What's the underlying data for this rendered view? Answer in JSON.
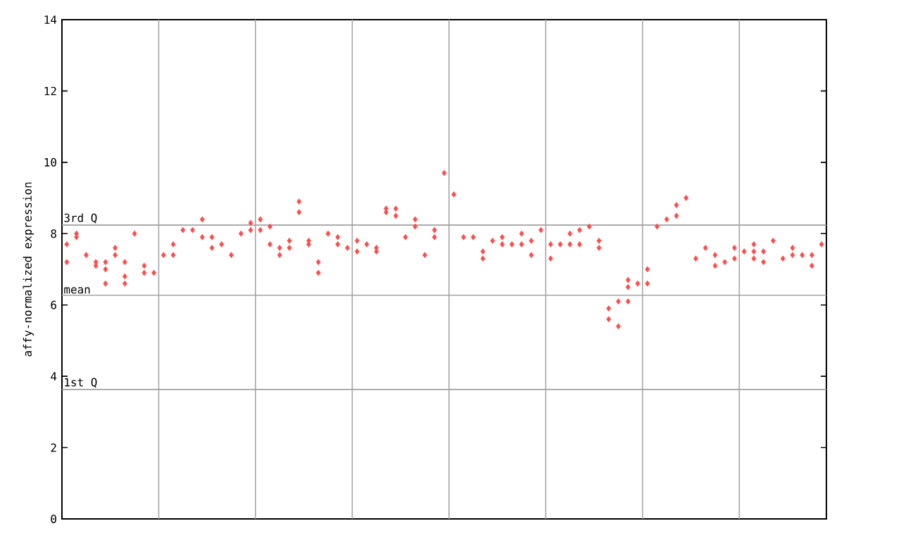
{
  "chart_data": {
    "type": "scatter",
    "ylabel": "affy-normalized expression",
    "ylim": [
      0,
      14
    ],
    "categories": [
      null,
      null,
      null,
      null,
      null,
      null,
      null,
      null,
      null,
      null,
      null,
      null,
      null,
      null,
      null,
      null,
      null,
      null,
      null,
      null,
      null,
      null,
      null,
      null,
      null,
      null,
      null,
      null,
      null,
      null,
      null,
      null,
      null,
      null,
      null,
      null,
      null,
      null,
      null,
      null,
      null,
      null,
      null,
      null,
      null,
      null,
      null,
      null,
      null,
      null,
      null,
      null,
      null,
      null,
      null,
      null,
      null,
      null,
      null,
      null,
      null,
      null,
      null,
      null,
      null,
      null,
      null,
      null,
      null,
      null,
      null,
      null,
      null,
      null,
      null,
      null,
      null,
      null,
      null
    ],
    "yticks": [
      0,
      2,
      4,
      6,
      8,
      10,
      12,
      14
    ],
    "grid": "x",
    "tick_labels": "y",
    "marker": "diamond",
    "ref_lines": [
      {
        "axis": "y",
        "value": 8.24,
        "label": "3rd Q",
        "color": "#a0a0a0"
      },
      {
        "axis": "y",
        "value": 6.27,
        "label": "mean",
        "color": "#a0a0a0"
      },
      {
        "axis": "y",
        "value": 3.63,
        "label": "1st Q",
        "color": "#a0a0a0"
      }
    ],
    "series": [
      {
        "color": "#ff4d4d",
        "values": [
          7.2,
          8.0,
          7.4,
          7.2,
          7.2,
          7.4,
          7.2,
          8.0,
          7.1,
          6.9,
          7.4,
          7.7,
          8.1,
          8.1,
          8.4,
          7.9,
          7.7,
          7.4,
          8.0,
          8.3,
          8.4,
          8.2,
          7.6,
          7.8,
          8.9,
          7.8,
          7.2,
          8.0,
          7.9,
          7.6,
          7.8,
          7.7,
          7.6,
          8.7,
          8.7,
          7.9,
          8.4,
          7.4,
          8.1,
          9.7,
          9.1,
          7.9,
          7.9,
          7.5,
          7.8,
          7.9,
          7.7,
          8.0,
          7.8,
          8.1,
          7.7,
          7.7,
          8.0,
          8.1,
          8.2,
          7.8,
          5.9,
          6.1,
          6.7,
          6.6,
          7.0,
          8.2,
          8.4,
          8.8,
          9.0,
          7.3,
          7.6,
          7.4,
          7.2,
          7.6,
          7.5,
          7.7,
          7.5,
          7.8,
          7.3,
          7.6,
          7.4,
          7.4,
          7.7
        ]
      },
      {
        "color": "#ff4d4d",
        "values": [
          7.7,
          7.9,
          null,
          7.1,
          7.0,
          7.6,
          6.8,
          null,
          6.9,
          null,
          null,
          7.4,
          null,
          null,
          7.9,
          7.6,
          null,
          null,
          null,
          8.1,
          8.1,
          7.7,
          7.4,
          7.6,
          8.6,
          7.7,
          6.9,
          null,
          7.7,
          null,
          7.5,
          null,
          7.5,
          8.6,
          8.5,
          null,
          8.2,
          null,
          7.9,
          null,
          null,
          null,
          null,
          7.3,
          null,
          7.7,
          null,
          7.7,
          7.4,
          null,
          7.3,
          null,
          7.7,
          7.7,
          null,
          7.6,
          5.6,
          5.4,
          6.5,
          null,
          6.6,
          null,
          null,
          8.5,
          null,
          null,
          null,
          7.1,
          null,
          7.3,
          null,
          7.5,
          7.2,
          null,
          null,
          7.4,
          null,
          7.1,
          null
        ]
      },
      {
        "color": "#ff4d4d",
        "values": [
          null,
          null,
          null,
          null,
          6.6,
          null,
          6.6,
          null,
          null,
          null,
          null,
          null,
          null,
          null,
          null,
          null,
          null,
          null,
          null,
          null,
          null,
          null,
          null,
          null,
          null,
          null,
          null,
          null,
          null,
          null,
          null,
          null,
          null,
          null,
          null,
          null,
          null,
          null,
          null,
          null,
          null,
          null,
          null,
          null,
          null,
          null,
          null,
          null,
          null,
          null,
          null,
          null,
          null,
          null,
          null,
          null,
          null,
          null,
          6.1,
          null,
          null,
          null,
          null,
          null,
          null,
          null,
          null,
          null,
          null,
          null,
          null,
          7.3,
          null,
          null,
          null,
          null,
          null,
          null,
          null
        ]
      }
    ]
  }
}
